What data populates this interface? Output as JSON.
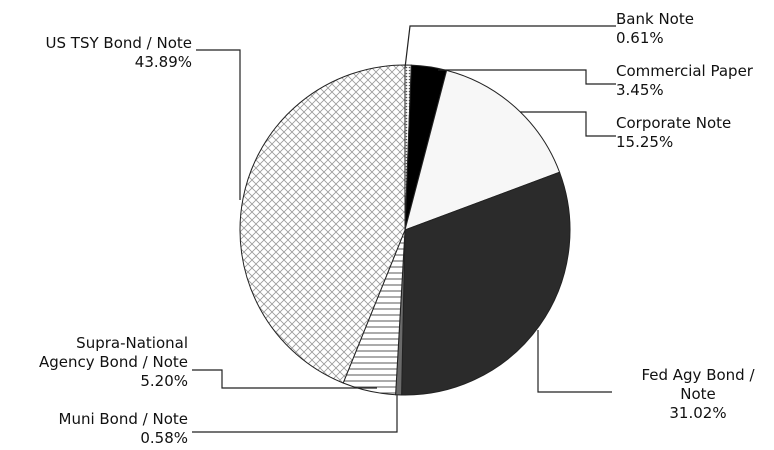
{
  "chart_data": {
    "type": "pie",
    "slices": [
      {
        "label_lines": [
          "Bank Note"
        ],
        "value_text": "0.61%",
        "value": 0.61,
        "fill": "#cfcfcf",
        "pattern": "dots"
      },
      {
        "label_lines": [
          "Commercial Paper"
        ],
        "value_text": "3.45%",
        "value": 3.45,
        "fill": "#000000",
        "pattern": "solid"
      },
      {
        "label_lines": [
          "Corporate Note"
        ],
        "value_text": "15.25%",
        "value": 15.25,
        "fill": "#f7f7f7",
        "pattern": "solid"
      },
      {
        "label_lines": [
          "Fed Agy Bond /",
          "Note"
        ],
        "value_text": "31.02%",
        "value": 31.02,
        "fill": "#2b2b2b",
        "pattern": "solid"
      },
      {
        "label_lines": [
          "Muni Bond / Note"
        ],
        "value_text": "0.58%",
        "value": 0.58,
        "fill": "#6a6a6a",
        "pattern": "solid"
      },
      {
        "label_lines": [
          "Supra-National",
          "Agency Bond / Note"
        ],
        "value_text": "5.20%",
        "value": 5.2,
        "fill": "#ffffff",
        "pattern": "hlines"
      },
      {
        "label_lines": [
          "US TSY Bond / Note"
        ],
        "value_text": "43.89%",
        "value": 43.89,
        "fill": "#ffffff",
        "pattern": "crosshatch"
      }
    ],
    "start_angle_deg": 0,
    "direction": "clockwise",
    "legend": "none"
  }
}
